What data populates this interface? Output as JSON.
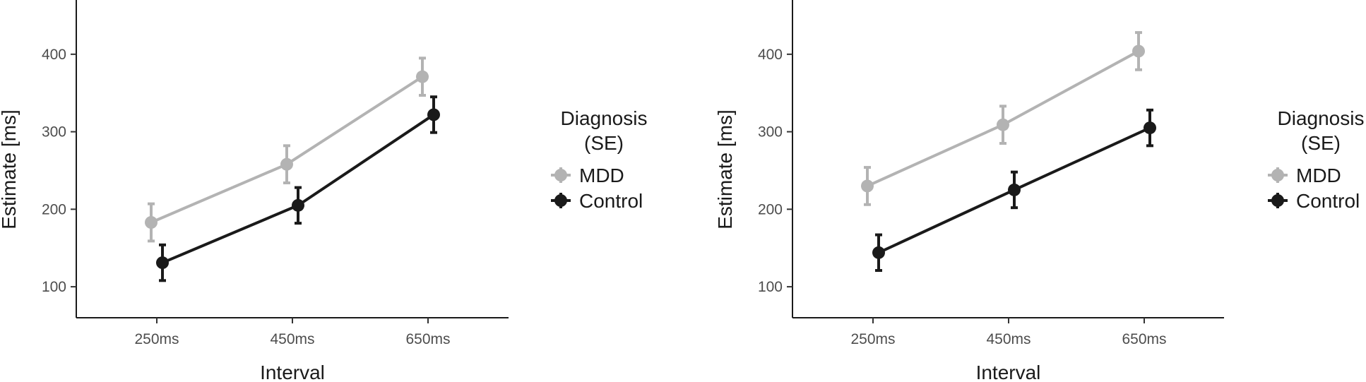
{
  "chart_data": [
    {
      "type": "line",
      "xlabel": "Interval",
      "ylabel": "Estimate [ms]",
      "categories": [
        "250ms",
        "450ms",
        "650ms"
      ],
      "yticks": [
        100,
        200,
        300,
        400
      ],
      "ylim": [
        60,
        470
      ],
      "grid": false,
      "legend": {
        "title_lines": [
          "Diagnosis",
          "(SE)"
        ],
        "position": "right"
      },
      "series": [
        {
          "name": "MDD",
          "color": "#b3b3b3",
          "values": [
            183,
            258,
            371
          ],
          "se": [
            24,
            24,
            24
          ]
        },
        {
          "name": "Control",
          "color": "#1a1a1a",
          "values": [
            131,
            205,
            322
          ],
          "se": [
            23,
            23,
            23
          ]
        }
      ]
    },
    {
      "type": "line",
      "xlabel": "Interval",
      "ylabel": "Estimate [ms]",
      "categories": [
        "250ms",
        "450ms",
        "650ms"
      ],
      "yticks": [
        100,
        200,
        300,
        400
      ],
      "ylim": [
        60,
        470
      ],
      "grid": false,
      "legend": {
        "title_lines": [
          "Diagnosis",
          "(SE)"
        ],
        "position": "right"
      },
      "series": [
        {
          "name": "MDD",
          "color": "#b3b3b3",
          "values": [
            230,
            309,
            404
          ],
          "se": [
            24,
            24,
            24
          ]
        },
        {
          "name": "Control",
          "color": "#1a1a1a",
          "values": [
            144,
            225,
            305
          ],
          "se": [
            23,
            23,
            23
          ]
        }
      ]
    }
  ]
}
